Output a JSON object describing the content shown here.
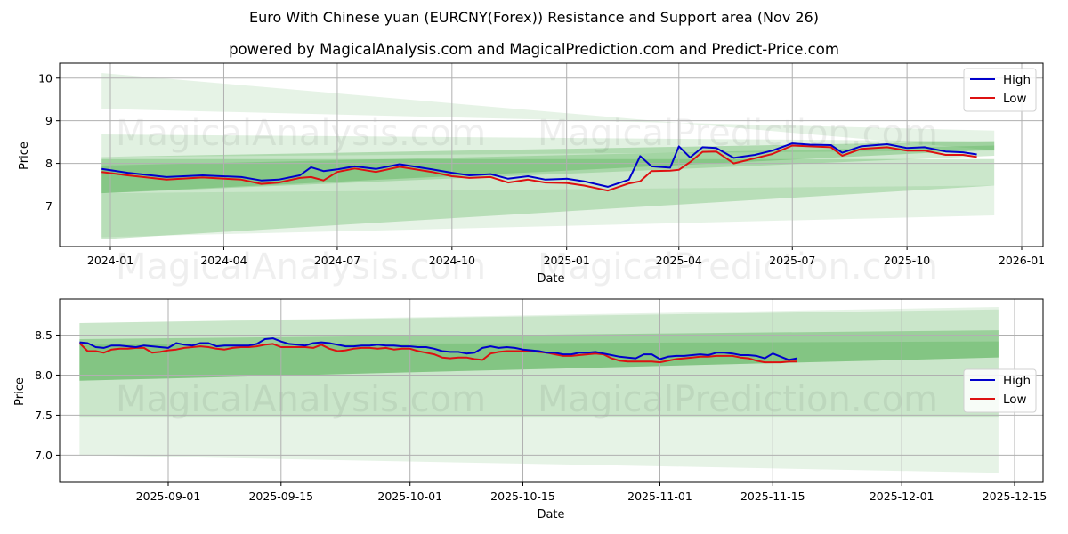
{
  "title": "Euro With Chinese yuan (EURCNY(Forex)) Resistance and Support area (Nov 26)",
  "subtitle": "powered by MagicalAnalysis.com and MagicalPrediction.com and Predict-Price.com",
  "watermarks": [
    "MagicalAnalysis.com",
    "MagicalPrediction.com"
  ],
  "colors": {
    "high": "#0000cc",
    "low": "#dd1111",
    "band": "#2e9e2e",
    "grid": "#b0b0b0"
  },
  "chart_data": [
    {
      "type": "line",
      "title": "Full history",
      "xlabel": "Date",
      "ylabel": "Price",
      "ylim": [
        6.05,
        10.35
      ],
      "yticks": [
        "7",
        "8",
        "9",
        "10"
      ],
      "xticks": [
        "2024-01",
        "2024-04",
        "2024-07",
        "2024-10",
        "2025-01",
        "2025-04",
        "2025-07",
        "2025-10",
        "2026-01"
      ],
      "grid": true,
      "legend": {
        "position": "upper right",
        "entries": [
          "High",
          "Low"
        ]
      },
      "x": [
        "2023-12-25",
        "2024-01-15",
        "2024-02-15",
        "2024-03-15",
        "2024-04-15",
        "2024-05-01",
        "2024-05-15",
        "2024-06-01",
        "2024-06-10",
        "2024-06-20",
        "2024-07-01",
        "2024-07-15",
        "2024-08-01",
        "2024-08-20",
        "2024-09-15",
        "2024-10-01",
        "2024-10-15",
        "2024-11-01",
        "2024-11-15",
        "2024-12-01",
        "2024-12-15",
        "2025-01-01",
        "2025-01-15",
        "2025-02-03",
        "2025-02-20",
        "2025-03-01",
        "2025-03-10",
        "2025-03-25",
        "2025-04-01",
        "2025-04-10",
        "2025-04-20",
        "2025-05-01",
        "2025-05-15",
        "2025-06-01",
        "2025-06-15",
        "2025-07-01",
        "2025-07-15",
        "2025-08-01",
        "2025-08-10",
        "2025-08-25",
        "2025-09-15",
        "2025-10-01",
        "2025-10-15",
        "2025-11-01",
        "2025-11-15",
        "2025-11-26"
      ],
      "series": [
        {
          "name": "High",
          "values": [
            7.87,
            7.78,
            7.68,
            7.72,
            7.68,
            7.6,
            7.62,
            7.72,
            7.91,
            7.82,
            7.86,
            7.93,
            7.87,
            7.98,
            7.86,
            7.78,
            7.72,
            7.75,
            7.64,
            7.7,
            7.62,
            7.64,
            7.58,
            7.45,
            7.62,
            8.17,
            7.93,
            7.9,
            8.4,
            8.14,
            8.38,
            8.36,
            8.13,
            8.2,
            8.3,
            8.47,
            8.44,
            8.43,
            8.25,
            8.4,
            8.45,
            8.36,
            8.38,
            8.28,
            8.26,
            8.21
          ]
        },
        {
          "name": "Low",
          "values": [
            7.8,
            7.72,
            7.62,
            7.67,
            7.62,
            7.52,
            7.55,
            7.66,
            7.68,
            7.6,
            7.8,
            7.88,
            7.8,
            7.92,
            7.8,
            7.7,
            7.66,
            7.68,
            7.55,
            7.62,
            7.55,
            7.54,
            7.48,
            7.36,
            7.53,
            7.58,
            7.82,
            7.83,
            7.85,
            8.03,
            8.27,
            8.28,
            8.0,
            8.12,
            8.22,
            8.42,
            8.4,
            8.38,
            8.18,
            8.34,
            8.38,
            8.3,
            8.3,
            8.2,
            8.2,
            8.15
          ]
        }
      ],
      "bands": [
        {
          "name": "outer-upper",
          "start": [
            9.28,
            10.12
          ],
          "end": [
            8.77,
            8.31
          ],
          "opacity": 0.12
        },
        {
          "name": "mid-upper",
          "start": [
            8.15,
            8.68
          ],
          "end": [
            8.3,
            8.52
          ],
          "opacity": 0.14
        },
        {
          "name": "core",
          "start": [
            7.3,
            8.15
          ],
          "end": [
            8.32,
            8.52
          ],
          "opacity": 0.28
        },
        {
          "name": "core-inner",
          "start": [
            7.3,
            7.95
          ],
          "end": [
            8.18,
            8.42
          ],
          "opacity": 0.22
        },
        {
          "name": "lower",
          "start": [
            6.22,
            8.1
          ],
          "end": [
            7.48,
            8.1
          ],
          "opacity": 0.25
        },
        {
          "name": "outer-lower",
          "start": [
            6.27,
            7.3
          ],
          "end": [
            6.78,
            7.48
          ],
          "opacity": 0.12
        }
      ]
    },
    {
      "type": "line",
      "title": "Recent three months",
      "xlabel": "Date",
      "ylabel": "Price",
      "ylim": [
        6.66,
        8.95
      ],
      "yticks": [
        "7.0",
        "7.5",
        "8.0",
        "8.5"
      ],
      "xticks": [
        "2025-09-01",
        "2025-09-15",
        "2025-10-01",
        "2025-10-15",
        "2025-11-01",
        "2025-11-15",
        "2025-12-01",
        "2025-12-15"
      ],
      "grid": true,
      "legend": {
        "position": "center right",
        "entries": [
          "High",
          "Low"
        ]
      },
      "x_start": "2025-08-21",
      "x_step_days": 1,
      "series": [
        {
          "name": "High",
          "values": [
            8.41,
            8.4,
            8.35,
            8.34,
            8.37,
            8.37,
            8.36,
            8.35,
            8.37,
            8.36,
            8.35,
            8.34,
            8.4,
            8.38,
            8.37,
            8.4,
            8.4,
            8.36,
            8.37,
            8.37,
            8.37,
            8.37,
            8.39,
            8.45,
            8.46,
            8.42,
            8.39,
            8.38,
            8.37,
            8.4,
            8.41,
            8.4,
            8.38,
            8.36,
            8.36,
            8.37,
            8.37,
            8.38,
            8.37,
            8.37,
            8.36,
            8.36,
            8.35,
            8.35,
            8.33,
            8.3,
            8.29,
            8.29,
            8.27,
            8.28,
            8.34,
            8.36,
            8.34,
            8.35,
            8.34,
            8.32,
            8.31,
            8.3,
            8.28,
            8.28,
            8.26,
            8.26,
            8.28,
            8.28,
            8.29,
            8.27,
            8.25,
            8.23,
            8.22,
            8.21,
            8.26,
            8.26,
            8.2,
            8.23,
            8.24,
            8.24,
            8.25,
            8.26,
            8.25,
            8.28,
            8.28,
            8.27,
            8.25,
            8.25,
            8.24,
            8.21,
            8.27,
            8.23,
            8.19,
            8.21
          ]
        },
        {
          "name": "Low",
          "values": [
            8.4,
            8.3,
            8.3,
            8.28,
            8.32,
            8.33,
            8.33,
            8.34,
            8.34,
            8.28,
            8.29,
            8.31,
            8.32,
            8.34,
            8.35,
            8.36,
            8.35,
            8.33,
            8.32,
            8.34,
            8.35,
            8.35,
            8.36,
            8.38,
            8.39,
            8.35,
            8.35,
            8.35,
            8.35,
            8.34,
            8.38,
            8.33,
            8.3,
            8.31,
            8.33,
            8.34,
            8.34,
            8.33,
            8.34,
            8.32,
            8.33,
            8.33,
            8.3,
            8.28,
            8.26,
            8.22,
            8.21,
            8.22,
            8.22,
            8.2,
            8.19,
            8.27,
            8.29,
            8.3,
            8.3,
            8.3,
            8.3,
            8.29,
            8.28,
            8.26,
            8.24,
            8.24,
            8.25,
            8.26,
            8.27,
            8.26,
            8.21,
            8.18,
            8.17,
            8.17,
            8.17,
            8.17,
            8.16,
            8.18,
            8.2,
            8.21,
            8.22,
            8.23,
            8.23,
            8.24,
            8.24,
            8.24,
            8.22,
            8.21,
            8.18,
            8.16,
            8.16,
            8.16,
            8.17,
            8.17
          ]
        }
      ],
      "bands": [
        {
          "name": "outer",
          "start": [
            7.0,
            8.65
          ],
          "end": [
            6.78,
            8.85
          ],
          "opacity": 0.12
        },
        {
          "name": "mid",
          "start": [
            7.47,
            8.65
          ],
          "end": [
            7.47,
            8.82
          ],
          "opacity": 0.15
        },
        {
          "name": "core",
          "start": [
            7.93,
            8.45
          ],
          "end": [
            8.22,
            8.56
          ],
          "opacity": 0.3
        },
        {
          "name": "core-inner",
          "start": [
            7.93,
            8.38
          ],
          "end": [
            8.22,
            8.42
          ],
          "opacity": 0.22
        }
      ]
    }
  ]
}
